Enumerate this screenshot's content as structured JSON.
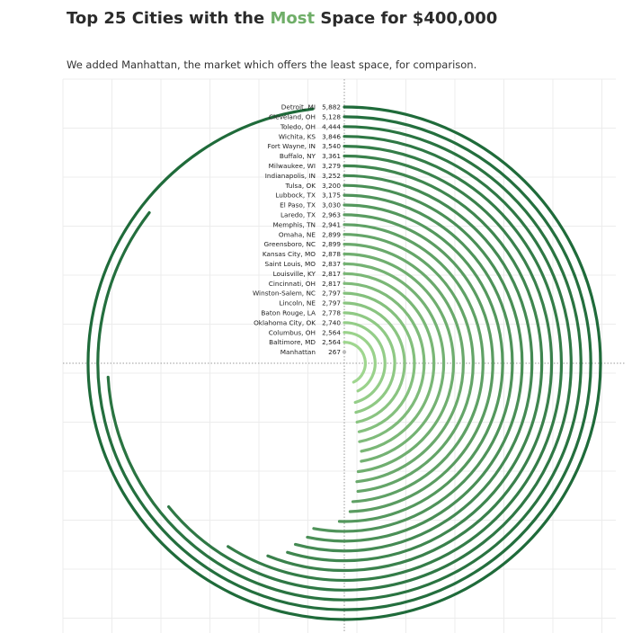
{
  "title": {
    "prefix": "Top 25 Cities with the ",
    "highlight": "Most",
    "suffix": " Space for $400,000"
  },
  "subtitle": "We added Manhattan, the market which offers the least space, for comparison.",
  "colors": {
    "highlight": "#6fae68",
    "arc_dark": "#1f6b3a",
    "arc_light": "#9fd68f",
    "manhattan_dot": "#bdbdbd",
    "grid": "#ececec",
    "axis_dotted": "#9a9a9a"
  },
  "chart_data": {
    "type": "radial_bar",
    "unit": "square feet",
    "max_value": 6000,
    "grid": true,
    "categories": [
      "Detroit, MI",
      "Cleveland, OH",
      "Toledo, OH",
      "Wichita, KS",
      "Fort Wayne, IN",
      "Buffalo, NY",
      "Milwaukee, WI",
      "Indianapolis, IN",
      "Tulsa, OK",
      "Lubbock, TX",
      "El Paso, TX",
      "Laredo, TX",
      "Memphis, TN",
      "Omaha, NE",
      "Greensboro, NC",
      "Kansas City, MO",
      "Saint Louis, MO",
      "Louisville, KY",
      "Cincinnati, OH",
      "Winston-Salem, NC",
      "Lincoln, NE",
      "Baton Rouge, LA",
      "Oklahoma City, OK",
      "Columbus, OH",
      "Baltimore, MD",
      "Manhattan"
    ],
    "values": [
      5882,
      5128,
      4444,
      3846,
      3540,
      3361,
      3279,
      3252,
      3200,
      3175,
      3030,
      2963,
      2941,
      2899,
      2899,
      2878,
      2837,
      2817,
      2817,
      2797,
      2797,
      2778,
      2740,
      2564,
      2564,
      267
    ],
    "value_labels": [
      "5,882",
      "5,128",
      "4,444",
      "3,846",
      "3,540",
      "3,361",
      "3,279",
      "3,252",
      "3,200",
      "3,175",
      "3,030",
      "2,963",
      "2,941",
      "2,899",
      "2,899",
      "2,878",
      "2,837",
      "2,817",
      "2,817",
      "2,797",
      "2,797",
      "2,778",
      "2,740",
      "2,564",
      "2,564",
      "267"
    ]
  }
}
